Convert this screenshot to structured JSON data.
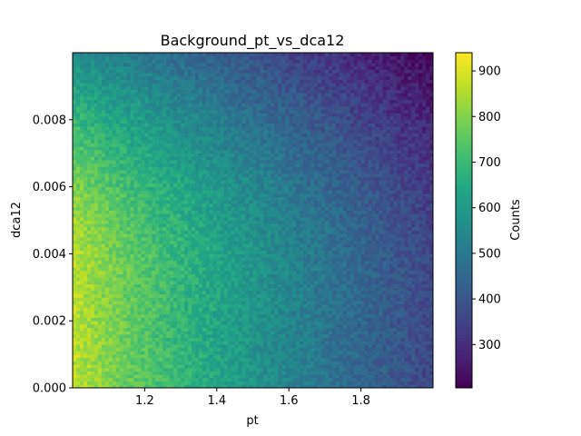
{
  "chart_data": {
    "type": "heatmap",
    "title": "Background_pt_vs_dca12",
    "xlabel": "pt",
    "ylabel": "dca12",
    "xlim": [
      1.0,
      2.0
    ],
    "ylim": [
      0.0,
      0.01
    ],
    "x_ticks": [
      1.2,
      1.4,
      1.6,
      1.8
    ],
    "x_tick_labels": [
      "1.2",
      "1.4",
      "1.6",
      "1.8"
    ],
    "y_ticks": [
      0.0,
      0.002,
      0.004,
      0.006,
      0.008
    ],
    "y_tick_labels": [
      "0.000",
      "0.002",
      "0.004",
      "0.006",
      "0.008"
    ],
    "x_bins": 100,
    "y_bins": 100,
    "colormap": "viridis",
    "colorbar": {
      "label": "Counts",
      "min": 205,
      "max": 940,
      "ticks": [
        300,
        400,
        500,
        600,
        700,
        800,
        900
      ],
      "tick_labels": [
        "300",
        "400",
        "500",
        "600",
        "700",
        "800",
        "900"
      ]
    },
    "trend": {
      "description_of_values": "counts decrease from ~870 at pt=1.0 to ~360 at pt=2.0, with a falloff at high dca12 near the top",
      "count_at_pt_min_low_dca": 870,
      "count_at_pt_max_low_dca": 360,
      "count_top_right": 215,
      "count_top_left": 560,
      "noise_amplitude": 45
    }
  }
}
